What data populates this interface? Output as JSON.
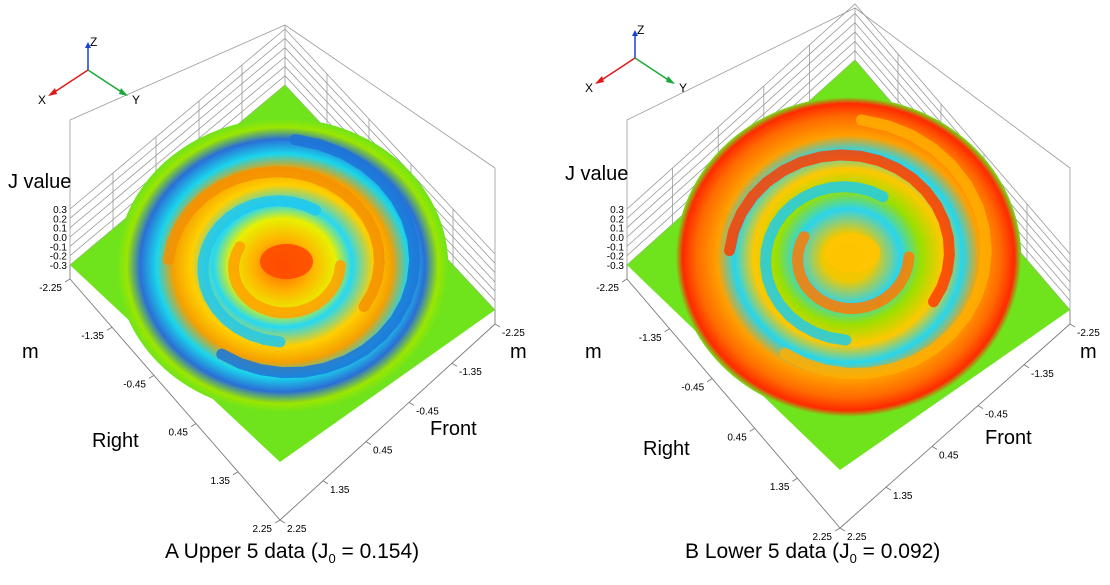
{
  "chart_data": [
    {
      "type": "surface",
      "panel": "A",
      "caption": {
        "prefix": "A  Upper 5 data (J",
        "sub": "0",
        "suffix": " = 0.154)"
      },
      "zlabel": "J value",
      "zticks": [
        "0.3",
        "0.2",
        "0.1",
        "0.0",
        "-0.1",
        "-0.2",
        "-0.3"
      ],
      "zlim": [
        -0.3,
        0.3
      ],
      "x_axis": {
        "label": "Right",
        "unit": "m",
        "ticks": [
          "-2.25",
          "-1.35",
          "-0.45",
          "0.45",
          "1.35",
          "2.25"
        ]
      },
      "y_axis": {
        "label": "Front",
        "unit": "m",
        "ticks": [
          "2.25",
          "1.35",
          "0.45",
          "-0.45",
          "-1.35",
          "-2.25"
        ]
      },
      "axes_icon": {
        "x": "X",
        "y": "Y",
        "z": "Z"
      },
      "colors": {
        "floor": "#6fe41c",
        "low": "#1c6cd4",
        "high": "#ff3a00"
      },
      "peak": "center-high",
      "rim": "low"
    },
    {
      "type": "surface",
      "panel": "B",
      "caption": {
        "prefix": "B  Lower 5 data (J",
        "sub": "0",
        "suffix": " = 0.092)"
      },
      "zlabel": "J value",
      "zticks": [
        "0.3",
        "0.2",
        "0.1",
        "0.0",
        "-0.1",
        "-0.2",
        "-0.3"
      ],
      "zlim": [
        -0.3,
        0.3
      ],
      "x_axis": {
        "label": "Right",
        "unit": "m",
        "ticks": [
          "-2.25",
          "-1.35",
          "-0.45",
          "0.45",
          "1.35",
          "2.25"
        ]
      },
      "y_axis": {
        "label": "Front",
        "unit": "m",
        "ticks": [
          "2.25",
          "1.35",
          "0.45",
          "-0.45",
          "-1.35",
          "-2.25"
        ]
      },
      "axes_icon": {
        "x": "X",
        "y": "Y",
        "z": "Z"
      },
      "colors": {
        "floor": "#6fe41c",
        "low": "#1c6cd4",
        "high": "#ff3a00"
      },
      "peak": "rim-high",
      "rim": "high"
    }
  ]
}
